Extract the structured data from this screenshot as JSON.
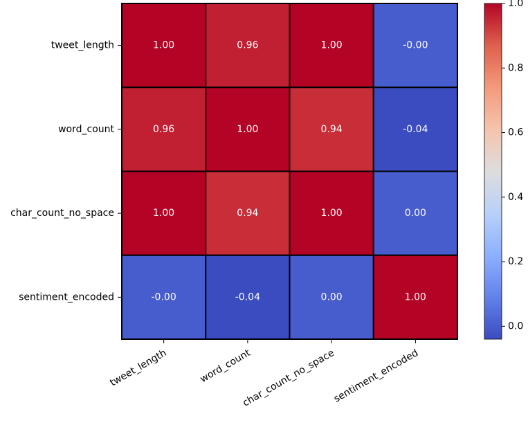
{
  "chart_data": {
    "type": "heatmap",
    "colormap": "coolwarm",
    "rows": [
      "tweet_length",
      "word_count",
      "char_count_no_space",
      "sentiment_encoded"
    ],
    "columns": [
      "tweet_length",
      "word_count",
      "char_count_no_space",
      "sentiment_encoded"
    ],
    "values": [
      [
        1.0,
        0.96,
        1.0,
        -0.0
      ],
      [
        0.96,
        1.0,
        0.94,
        -0.04
      ],
      [
        1.0,
        0.94,
        1.0,
        0.0
      ],
      [
        -0.0,
        -0.04,
        0.0,
        1.0
      ]
    ],
    "annotations": [
      [
        "1.00",
        "0.96",
        "1.00",
        "-0.00"
      ],
      [
        "0.96",
        "1.00",
        "0.94",
        "-0.04"
      ],
      [
        "1.00",
        "0.94",
        "1.00",
        "0.00"
      ],
      [
        "-0.00",
        "-0.04",
        "0.00",
        "1.00"
      ]
    ],
    "color_range": [
      -0.04,
      1.0
    ],
    "colorbar_ticks": [
      0.0,
      0.2,
      0.4,
      0.6,
      0.8,
      1.0
    ],
    "colorbar_tick_labels": [
      "0.0",
      "0.2",
      "0.4",
      "0.6",
      "0.8",
      "1.0"
    ],
    "cell_border_color": "#000000",
    "annotation_color": "#ffffff"
  }
}
